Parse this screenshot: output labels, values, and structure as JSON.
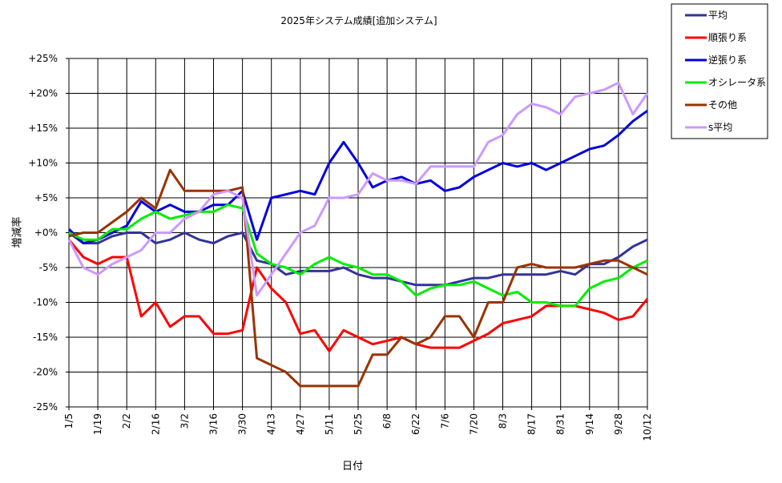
{
  "chart_data": {
    "type": "line",
    "title": "2025年システム成績[追加システム]",
    "x_label": "日付",
    "y_label": "増減率",
    "x": [
      "1/5",
      "1/12",
      "1/19",
      "1/26",
      "2/2",
      "2/9",
      "2/16",
      "2/23",
      "3/2",
      "3/9",
      "3/16",
      "3/23",
      "3/30",
      "4/6",
      "4/13",
      "4/20",
      "4/27",
      "5/4",
      "5/11",
      "5/18",
      "5/25",
      "6/1",
      "6/8",
      "6/15",
      "6/22",
      "6/29",
      "7/6",
      "7/13",
      "7/20",
      "7/27",
      "8/3",
      "8/10",
      "8/17",
      "8/24",
      "8/31",
      "9/7",
      "9/14",
      "9/21",
      "9/28",
      "10/5",
      "10/12"
    ],
    "xticks": [
      "1/5",
      "1/19",
      "2/2",
      "2/16",
      "3/2",
      "3/16",
      "3/30",
      "4/13",
      "4/27",
      "5/11",
      "5/25",
      "6/8",
      "6/22",
      "7/6",
      "7/20",
      "8/3",
      "8/17",
      "8/31",
      "9/14",
      "9/28",
      "10/12"
    ],
    "ylim": [
      -25,
      25
    ],
    "yticks": [
      {
        "value": 25,
        "label": "+25%"
      },
      {
        "value": 20,
        "label": "+20%"
      },
      {
        "value": 15,
        "label": "+15%"
      },
      {
        "value": 10,
        "label": "+10%"
      },
      {
        "value": 5,
        "label": "+5%"
      },
      {
        "value": 0,
        "label": "+0%"
      },
      {
        "value": -5,
        "label": "-5%"
      },
      {
        "value": -10,
        "label": "-10%"
      },
      {
        "value": -15,
        "label": "-15%"
      },
      {
        "value": -20,
        "label": "-20%"
      },
      {
        "value": -25,
        "label": "-25%"
      }
    ],
    "grid": true,
    "legend": "right",
    "series": [
      {
        "name": "平均",
        "color": "#333399",
        "values": [
          0,
          -1.5,
          -1.5,
          -0.5,
          0,
          0,
          -1.5,
          -1,
          0,
          -1,
          -1.5,
          -0.5,
          0,
          -4,
          -4.5,
          -6,
          -5.5,
          -5.5,
          -5.5,
          -5,
          -6,
          -6.5,
          -6.5,
          -7,
          -7.5,
          -7.5,
          -7.5,
          -7,
          -6.5,
          -6.5,
          -6,
          -6,
          -6,
          -6,
          -5.5,
          -6,
          -4.5,
          -4.5,
          -3.5,
          -2,
          -1
        ]
      },
      {
        "name": "順張り系",
        "color": "#ff0000",
        "values": [
          -1,
          -3.5,
          -4.5,
          -3.5,
          -3.5,
          -12,
          -10,
          -13.5,
          -12,
          -12,
          -14.5,
          -14.5,
          -14,
          -5,
          -8,
          -10,
          -14.5,
          -14,
          -17,
          -14,
          -15,
          -16,
          -15.5,
          -15,
          -16,
          -16.5,
          -16.5,
          -16.5,
          -15.5,
          -14.5,
          -13,
          -12.5,
          -12,
          -10.5,
          -10.5,
          -10.5,
          -11,
          -11.5,
          -12.5,
          -12,
          -9.5
        ]
      },
      {
        "name": "逆張り系",
        "color": "#0000dd",
        "values": [
          0.5,
          -1.5,
          -1,
          0,
          1,
          4.5,
          3,
          4,
          3,
          3,
          4,
          4,
          6,
          -1,
          5,
          5.5,
          6,
          5.5,
          10,
          13,
          10,
          6.5,
          7.5,
          8,
          7,
          7.5,
          6,
          6.5,
          8,
          9,
          10,
          9.5,
          10,
          9,
          10,
          11,
          12,
          12.5,
          14,
          16,
          17.5
        ]
      },
      {
        "name": "オシレータ系",
        "color": "#00ee00",
        "values": [
          0,
          -1,
          -1,
          0.5,
          0.5,
          2,
          3,
          2,
          2.5,
          3,
          3,
          4,
          3.5,
          -3,
          -4.5,
          -5,
          -6,
          -4.5,
          -3.5,
          -4.5,
          -5,
          -6,
          -6,
          -7,
          -9,
          -8,
          -7.5,
          -7.5,
          -7,
          -8,
          -9,
          -8.5,
          -10,
          -10,
          -10.5,
          -10.5,
          -8,
          -7,
          -6.5,
          -5,
          -4
        ]
      },
      {
        "name": "その他",
        "color": "#993300",
        "values": [
          -0.5,
          0,
          0,
          1.5,
          3,
          5,
          3.5,
          9,
          6,
          6,
          6,
          6,
          6.5,
          -18,
          -19,
          -20,
          -22,
          -22,
          -22,
          -22,
          -22,
          -17.5,
          -17.5,
          -15,
          -16,
          -15,
          -12,
          -12,
          -15,
          -10,
          -10,
          -5,
          -4.5,
          -5,
          -5,
          -5,
          -4.5,
          -4,
          -4,
          -5,
          -6
        ]
      },
      {
        "name": "s平均",
        "color": "#cc99ff",
        "values": [
          -1,
          -5,
          -6,
          -4.5,
          -3.5,
          -2.5,
          0,
          0,
          2,
          3,
          5.5,
          6,
          5,
          -9,
          -6,
          -3,
          0,
          1,
          5,
          5,
          5.5,
          8.5,
          7.5,
          7.5,
          7,
          9.5,
          9.5,
          9.5,
          9.5,
          13,
          14,
          17,
          18.5,
          18,
          17,
          19.5,
          20,
          20.5,
          21.5,
          17,
          20
        ]
      }
    ]
  }
}
